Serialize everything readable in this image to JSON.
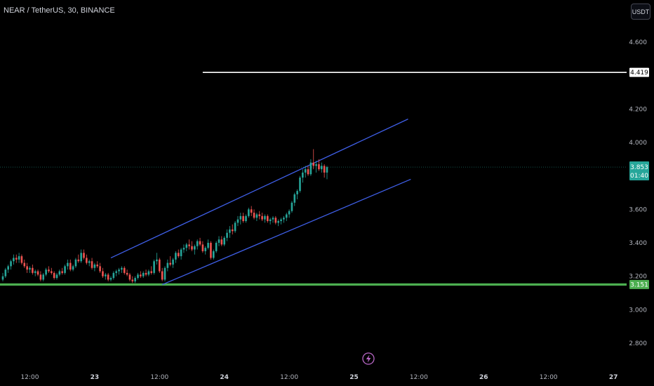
{
  "header": {
    "symbol_title": "NEAR / TetherUS, 30, BINANCE",
    "currency_button": "USDT"
  },
  "colors": {
    "background": "#000000",
    "candle_up": "#26a69a",
    "candle_down": "#ef5350",
    "channel": "#3f5fe8",
    "support": "#4caf50",
    "resistance": "#ffffff",
    "price_line": "#26a69a",
    "event_icon": "#ba68c8"
  },
  "event_icon": "lightning-icon",
  "chart_data": {
    "type": "candlestick",
    "title": "NEAR / TetherUS, 30, BINANCE",
    "y_axis": {
      "ylim": [
        2.72,
        4.85
      ],
      "ticks": [
        "4.600",
        "4.200",
        "4.000",
        "3.600",
        "3.400",
        "3.200",
        "3.000",
        "2.800"
      ],
      "tick_values": [
        4.6,
        4.2,
        4.0,
        3.6,
        3.4,
        3.2,
        3.0,
        2.8
      ]
    },
    "x_axis": {
      "ticks": [
        {
          "label": "12:00",
          "bar": 10,
          "day": false
        },
        {
          "label": "23",
          "bar": 34,
          "day": true
        },
        {
          "label": "12:00",
          "bar": 58,
          "day": false
        },
        {
          "label": "24",
          "bar": 82,
          "day": true
        },
        {
          "label": "12:00",
          "bar": 106,
          "day": false
        },
        {
          "label": "25",
          "bar": 130,
          "day": true
        },
        {
          "label": "12:00",
          "bar": 154,
          "day": false
        },
        {
          "label": "26",
          "bar": 178,
          "day": true
        },
        {
          "label": "12:00",
          "bar": 202,
          "day": false
        },
        {
          "label": "27",
          "bar": 226,
          "day": true
        }
      ]
    },
    "candles": [
      [
        3.18,
        3.22,
        3.17,
        3.2
      ],
      [
        3.2,
        3.25,
        3.19,
        3.24
      ],
      [
        3.24,
        3.27,
        3.22,
        3.26
      ],
      [
        3.26,
        3.3,
        3.24,
        3.29
      ],
      [
        3.29,
        3.33,
        3.27,
        3.31
      ],
      [
        3.31,
        3.33,
        3.28,
        3.3
      ],
      [
        3.3,
        3.34,
        3.28,
        3.32
      ],
      [
        3.32,
        3.33,
        3.27,
        3.28
      ],
      [
        3.28,
        3.3,
        3.25,
        3.26
      ],
      [
        3.26,
        3.28,
        3.22,
        3.24
      ],
      [
        3.24,
        3.26,
        3.22,
        3.25
      ],
      [
        3.25,
        3.27,
        3.21,
        3.22
      ],
      [
        3.22,
        3.24,
        3.2,
        3.23
      ],
      [
        3.23,
        3.24,
        3.2,
        3.21
      ],
      [
        3.21,
        3.23,
        3.17,
        3.18
      ],
      [
        3.18,
        3.22,
        3.17,
        3.21
      ],
      [
        3.21,
        3.25,
        3.2,
        3.24
      ],
      [
        3.24,
        3.26,
        3.22,
        3.23
      ],
      [
        3.23,
        3.25,
        3.21,
        3.22
      ],
      [
        3.22,
        3.23,
        3.18,
        3.19
      ],
      [
        3.19,
        3.22,
        3.18,
        3.21
      ],
      [
        3.21,
        3.24,
        3.2,
        3.23
      ],
      [
        3.23,
        3.25,
        3.21,
        3.22
      ],
      [
        3.22,
        3.27,
        3.21,
        3.26
      ],
      [
        3.26,
        3.3,
        3.24,
        3.28
      ],
      [
        3.28,
        3.3,
        3.23,
        3.24
      ],
      [
        3.24,
        3.27,
        3.23,
        3.26
      ],
      [
        3.26,
        3.31,
        3.25,
        3.3
      ],
      [
        3.3,
        3.33,
        3.28,
        3.29
      ],
      [
        3.29,
        3.36,
        3.28,
        3.34
      ],
      [
        3.34,
        3.36,
        3.3,
        3.31
      ],
      [
        3.31,
        3.33,
        3.27,
        3.28
      ],
      [
        3.28,
        3.3,
        3.26,
        3.29
      ],
      [
        3.29,
        3.31,
        3.24,
        3.25
      ],
      [
        3.25,
        3.28,
        3.23,
        3.27
      ],
      [
        3.27,
        3.29,
        3.25,
        3.26
      ],
      [
        3.26,
        3.28,
        3.22,
        3.23
      ],
      [
        3.23,
        3.25,
        3.19,
        3.2
      ],
      [
        3.2,
        3.22,
        3.18,
        3.21
      ],
      [
        3.21,
        3.22,
        3.17,
        3.18
      ],
      [
        3.18,
        3.2,
        3.17,
        3.19
      ],
      [
        3.19,
        3.23,
        3.18,
        3.22
      ],
      [
        3.22,
        3.24,
        3.2,
        3.23
      ],
      [
        3.23,
        3.25,
        3.21,
        3.24
      ],
      [
        3.24,
        3.26,
        3.22,
        3.25
      ],
      [
        3.25,
        3.26,
        3.21,
        3.22
      ],
      [
        3.22,
        3.24,
        3.2,
        3.21
      ],
      [
        3.21,
        3.22,
        3.17,
        3.18
      ],
      [
        3.18,
        3.2,
        3.16,
        3.17
      ],
      [
        3.17,
        3.2,
        3.16,
        3.19
      ],
      [
        3.19,
        3.22,
        3.18,
        3.21
      ],
      [
        3.21,
        3.23,
        3.19,
        3.2
      ],
      [
        3.2,
        3.23,
        3.19,
        3.22
      ],
      [
        3.22,
        3.24,
        3.2,
        3.21
      ],
      [
        3.21,
        3.24,
        3.2,
        3.23
      ],
      [
        3.23,
        3.26,
        3.21,
        3.22
      ],
      [
        3.22,
        3.3,
        3.21,
        3.29
      ],
      [
        3.29,
        3.34,
        3.27,
        3.3
      ],
      [
        3.3,
        3.31,
        3.22,
        3.23
      ],
      [
        3.23,
        3.25,
        3.17,
        3.18
      ],
      [
        3.18,
        3.26,
        3.17,
        3.25
      ],
      [
        3.25,
        3.3,
        3.23,
        3.28
      ],
      [
        3.28,
        3.32,
        3.26,
        3.27
      ],
      [
        3.27,
        3.31,
        3.25,
        3.3
      ],
      [
        3.3,
        3.35,
        3.28,
        3.34
      ],
      [
        3.34,
        3.36,
        3.31,
        3.32
      ],
      [
        3.32,
        3.37,
        3.3,
        3.36
      ],
      [
        3.36,
        3.39,
        3.34,
        3.37
      ],
      [
        3.37,
        3.4,
        3.35,
        3.39
      ],
      [
        3.39,
        3.42,
        3.36,
        3.38
      ],
      [
        3.38,
        3.41,
        3.35,
        3.36
      ],
      [
        3.36,
        3.39,
        3.33,
        3.38
      ],
      [
        3.38,
        3.42,
        3.36,
        3.41
      ],
      [
        3.41,
        3.43,
        3.38,
        3.39
      ],
      [
        3.39,
        3.41,
        3.34,
        3.35
      ],
      [
        3.35,
        3.38,
        3.33,
        3.37
      ],
      [
        3.37,
        3.42,
        3.36,
        3.4
      ],
      [
        3.4,
        3.41,
        3.3,
        3.31
      ],
      [
        3.31,
        3.36,
        3.3,
        3.35
      ],
      [
        3.35,
        3.41,
        3.34,
        3.4
      ],
      [
        3.4,
        3.44,
        3.38,
        3.42
      ],
      [
        3.42,
        3.44,
        3.38,
        3.39
      ],
      [
        3.39,
        3.44,
        3.38,
        3.43
      ],
      [
        3.43,
        3.48,
        3.41,
        3.46
      ],
      [
        3.46,
        3.5,
        3.43,
        3.48
      ],
      [
        3.48,
        3.51,
        3.45,
        3.47
      ],
      [
        3.47,
        3.53,
        3.46,
        3.52
      ],
      [
        3.52,
        3.56,
        3.5,
        3.54
      ],
      [
        3.54,
        3.58,
        3.51,
        3.56
      ],
      [
        3.56,
        3.58,
        3.52,
        3.53
      ],
      [
        3.53,
        3.57,
        3.52,
        3.56
      ],
      [
        3.56,
        3.61,
        3.55,
        3.6
      ],
      [
        3.6,
        3.62,
        3.56,
        3.58
      ],
      [
        3.58,
        3.6,
        3.54,
        3.55
      ],
      [
        3.55,
        3.58,
        3.53,
        3.57
      ],
      [
        3.57,
        3.59,
        3.54,
        3.56
      ],
      [
        3.56,
        3.58,
        3.53,
        3.54
      ],
      [
        3.54,
        3.57,
        3.52,
        3.56
      ],
      [
        3.56,
        3.57,
        3.52,
        3.53
      ],
      [
        3.53,
        3.55,
        3.51,
        3.54
      ],
      [
        3.54,
        3.56,
        3.52,
        3.55
      ],
      [
        3.55,
        3.56,
        3.51,
        3.52
      ],
      [
        3.52,
        3.54,
        3.5,
        3.53
      ],
      [
        3.53,
        3.55,
        3.51,
        3.54
      ],
      [
        3.54,
        3.56,
        3.52,
        3.55
      ],
      [
        3.55,
        3.58,
        3.53,
        3.57
      ],
      [
        3.57,
        3.6,
        3.55,
        3.59
      ],
      [
        3.59,
        3.65,
        3.58,
        3.64
      ],
      [
        3.64,
        3.7,
        3.62,
        3.69
      ],
      [
        3.69,
        3.72,
        3.66,
        3.71
      ],
      [
        3.71,
        3.8,
        3.7,
        3.79
      ],
      [
        3.79,
        3.84,
        3.76,
        3.82
      ],
      [
        3.82,
        3.86,
        3.79,
        3.84
      ],
      [
        3.84,
        3.86,
        3.8,
        3.81
      ],
      [
        3.81,
        3.9,
        3.8,
        3.88
      ],
      [
        3.88,
        3.96,
        3.84,
        3.86
      ],
      [
        3.86,
        3.89,
        3.82,
        3.87
      ],
      [
        3.87,
        3.9,
        3.83,
        3.84
      ],
      [
        3.84,
        3.88,
        3.82,
        3.86
      ],
      [
        3.86,
        3.87,
        3.79,
        3.82
      ],
      [
        3.82,
        3.86,
        3.78,
        3.853
      ]
    ],
    "drawings": {
      "resistance_level": 4.419,
      "support_level": 3.151,
      "last_price": 3.853,
      "channel_upper": {
        "from": {
          "bar": 40,
          "price": 3.31
        },
        "to": {
          "bar": 150,
          "price": 4.14
        }
      },
      "channel_lower": {
        "from": {
          "bar": 59,
          "price": 3.15
        },
        "to": {
          "bar": 151,
          "price": 3.78
        }
      },
      "resistance_start_bar": 74
    },
    "price_tags": {
      "resistance": "4.419",
      "last": "3.853",
      "countdown": "01:40",
      "support": "3.151"
    },
    "grid": false,
    "legend": "none"
  }
}
